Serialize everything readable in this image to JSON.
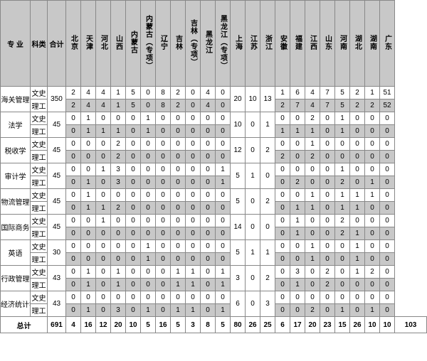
{
  "headers": [
    "专 业",
    "科类",
    "合计",
    "北京",
    "天津",
    "河北",
    "山西",
    "内蒙古",
    "内蒙古（专项）",
    "辽宁",
    "吉林",
    "吉林（专项）",
    "黑龙江",
    "黑龙江（专项）",
    "上海",
    "江苏",
    "浙江",
    "安徽",
    "福建",
    "江西",
    "山东",
    "河南",
    "湖北",
    "湖南",
    "广东"
  ],
  "majors": [
    {
      "name": "海关管理",
      "total": "350",
      "span": {
        "sh": "20",
        "js": "10",
        "zj": "13"
      },
      "rows": [
        {
          "sub": "文史",
          "cells": [
            "2",
            "4",
            "4",
            "1",
            "5",
            "0",
            "8",
            "2",
            "0",
            "4",
            "0",
            "",
            "",
            "",
            "1",
            "6",
            "4",
            "7",
            "5",
            "2",
            "1",
            "51"
          ]
        },
        {
          "sub": "理工",
          "shaded": true,
          "cells": [
            "2",
            "4",
            "4",
            "1",
            "5",
            "0",
            "8",
            "2",
            "0",
            "4",
            "0",
            "",
            "",
            "",
            "2",
            "7",
            "4",
            "7",
            "5",
            "2",
            "2",
            "52"
          ]
        }
      ]
    },
    {
      "name": "法学",
      "total": "45",
      "span": {
        "sh": "10",
        "js": "0",
        "zj": "1"
      },
      "rows": [
        {
          "sub": "文史",
          "cells": [
            "0",
            "1",
            "0",
            "0",
            "0",
            "1",
            "0",
            "0",
            "0",
            "0",
            "0",
            "",
            "",
            "",
            "0",
            "0",
            "2",
            "0",
            "1",
            "0",
            "0",
            "0"
          ]
        },
        {
          "sub": "理工",
          "shaded": true,
          "cells": [
            "0",
            "1",
            "1",
            "1",
            "0",
            "1",
            "0",
            "0",
            "0",
            "0",
            "0",
            "",
            "",
            "",
            "1",
            "1",
            "1",
            "0",
            "1",
            "0",
            "0",
            "0"
          ]
        }
      ]
    },
    {
      "name": "税收学",
      "total": "45",
      "span": {
        "sh": "12",
        "js": "0",
        "zj": "2"
      },
      "rows": [
        {
          "sub": "文史",
          "cells": [
            "0",
            "0",
            "0",
            "2",
            "0",
            "0",
            "0",
            "0",
            "0",
            "0",
            "0",
            "",
            "",
            "",
            "0",
            "0",
            "1",
            "0",
            "0",
            "0",
            "0",
            "0"
          ]
        },
        {
          "sub": "理工",
          "shaded": true,
          "cells": [
            "0",
            "0",
            "0",
            "2",
            "0",
            "0",
            "0",
            "0",
            "0",
            "0",
            "0",
            "",
            "",
            "",
            "2",
            "0",
            "2",
            "0",
            "0",
            "0",
            "0",
            "0"
          ]
        }
      ]
    },
    {
      "name": "审计学",
      "total": "45",
      "span": {
        "sh": "5",
        "js": "1",
        "zj": "0"
      },
      "rows": [
        {
          "sub": "文史",
          "cells": [
            "0",
            "0",
            "1",
            "3",
            "0",
            "0",
            "0",
            "0",
            "0",
            "0",
            "1",
            "",
            "",
            "",
            "0",
            "0",
            "0",
            "0",
            "1",
            "0",
            "0",
            "0"
          ]
        },
        {
          "sub": "理工",
          "shaded": true,
          "cells": [
            "0",
            "1",
            "0",
            "3",
            "0",
            "0",
            "0",
            "0",
            "0",
            "0",
            "1",
            "",
            "",
            "",
            "0",
            "2",
            "0",
            "0",
            "2",
            "0",
            "1",
            "0"
          ]
        }
      ]
    },
    {
      "name": "物流管理",
      "total": "45",
      "span": {
        "sh": "5",
        "js": "0",
        "zj": "2"
      },
      "rows": [
        {
          "sub": "文史",
          "cells": [
            "0",
            "1",
            "0",
            "0",
            "0",
            "0",
            "0",
            "0",
            "0",
            "0",
            "0",
            "",
            "",
            "",
            "0",
            "0",
            "1",
            "0",
            "1",
            "1",
            "1",
            "0"
          ]
        },
        {
          "sub": "理工",
          "shaded": true,
          "cells": [
            "0",
            "1",
            "1",
            "2",
            "0",
            "0",
            "0",
            "0",
            "0",
            "0",
            "0",
            "",
            "",
            "",
            "0",
            "1",
            "1",
            "0",
            "1",
            "1",
            "0",
            "0"
          ]
        }
      ]
    },
    {
      "name": "国际商务",
      "total": "45",
      "span": {
        "sh": "14",
        "js": "0",
        "zj": "0"
      },
      "rows": [
        {
          "sub": "文史",
          "cells": [
            "0",
            "0",
            "1",
            "0",
            "0",
            "0",
            "0",
            "0",
            "0",
            "0",
            "0",
            "",
            "",
            "",
            "0",
            "1",
            "0",
            "0",
            "2",
            "0",
            "0",
            "0"
          ]
        },
        {
          "sub": "理工",
          "shaded": true,
          "cells": [
            "0",
            "0",
            "0",
            "0",
            "0",
            "0",
            "0",
            "0",
            "0",
            "0",
            "0",
            "",
            "",
            "",
            "0",
            "1",
            "0",
            "0",
            "2",
            "1",
            "0",
            "0"
          ]
        }
      ]
    },
    {
      "name": "英语",
      "total": "30",
      "span": {
        "sh": "5",
        "js": "1",
        "zj": "1"
      },
      "rows": [
        {
          "sub": "文史",
          "cells": [
            "0",
            "0",
            "0",
            "0",
            "0",
            "1",
            "0",
            "0",
            "0",
            "0",
            "0",
            "",
            "",
            "",
            "0",
            "0",
            "1",
            "0",
            "0",
            "1",
            "0",
            "0"
          ]
        },
        {
          "sub": "理工",
          "shaded": true,
          "cells": [
            "0",
            "0",
            "0",
            "0",
            "0",
            "1",
            "0",
            "0",
            "0",
            "0",
            "0",
            "",
            "",
            "",
            "0",
            "0",
            "1",
            "0",
            "0",
            "1",
            "0",
            "0"
          ]
        }
      ]
    },
    {
      "name": "行政管理",
      "total": "43",
      "span": {
        "sh": "3",
        "js": "0",
        "zj": "2"
      },
      "rows": [
        {
          "sub": "文史",
          "cells": [
            "0",
            "1",
            "0",
            "1",
            "0",
            "0",
            "0",
            "1",
            "1",
            "0",
            "1",
            "",
            "",
            "",
            "0",
            "3",
            "0",
            "2",
            "0",
            "1",
            "2",
            "0"
          ]
        },
        {
          "sub": "理工",
          "shaded": true,
          "cells": [
            "0",
            "1",
            "0",
            "1",
            "0",
            "0",
            "0",
            "1",
            "1",
            "0",
            "1",
            "",
            "",
            "",
            "0",
            "1",
            "0",
            "2",
            "0",
            "0",
            "0",
            "0"
          ]
        }
      ]
    },
    {
      "name": "经济统计学",
      "total": "43",
      "span": {
        "sh": "6",
        "js": "0",
        "zj": "3"
      },
      "rows": [
        {
          "sub": "文史",
          "cells": [
            "0",
            "0",
            "0",
            "0",
            "0",
            "0",
            "0",
            "0",
            "0",
            "0",
            "0",
            "",
            "",
            "",
            "0",
            "0",
            "0",
            "0",
            "0",
            "0",
            "0",
            "0"
          ]
        },
        {
          "sub": "理工",
          "shaded": true,
          "cells": [
            "0",
            "1",
            "0",
            "3",
            "0",
            "1",
            "0",
            "1",
            "1",
            "0",
            "1",
            "",
            "",
            "",
            "0",
            "0",
            "2",
            "0",
            "1",
            "0",
            "1",
            "0"
          ]
        }
      ]
    }
  ],
  "total": {
    "label": "总计",
    "cells": [
      "691",
      "4",
      "16",
      "12",
      "20",
      "10",
      "5",
      "16",
      "5",
      "3",
      "8",
      "5",
      "80",
      "26",
      "25",
      "6",
      "17",
      "20",
      "23",
      "15",
      "26",
      "10",
      "10",
      "103"
    ]
  }
}
